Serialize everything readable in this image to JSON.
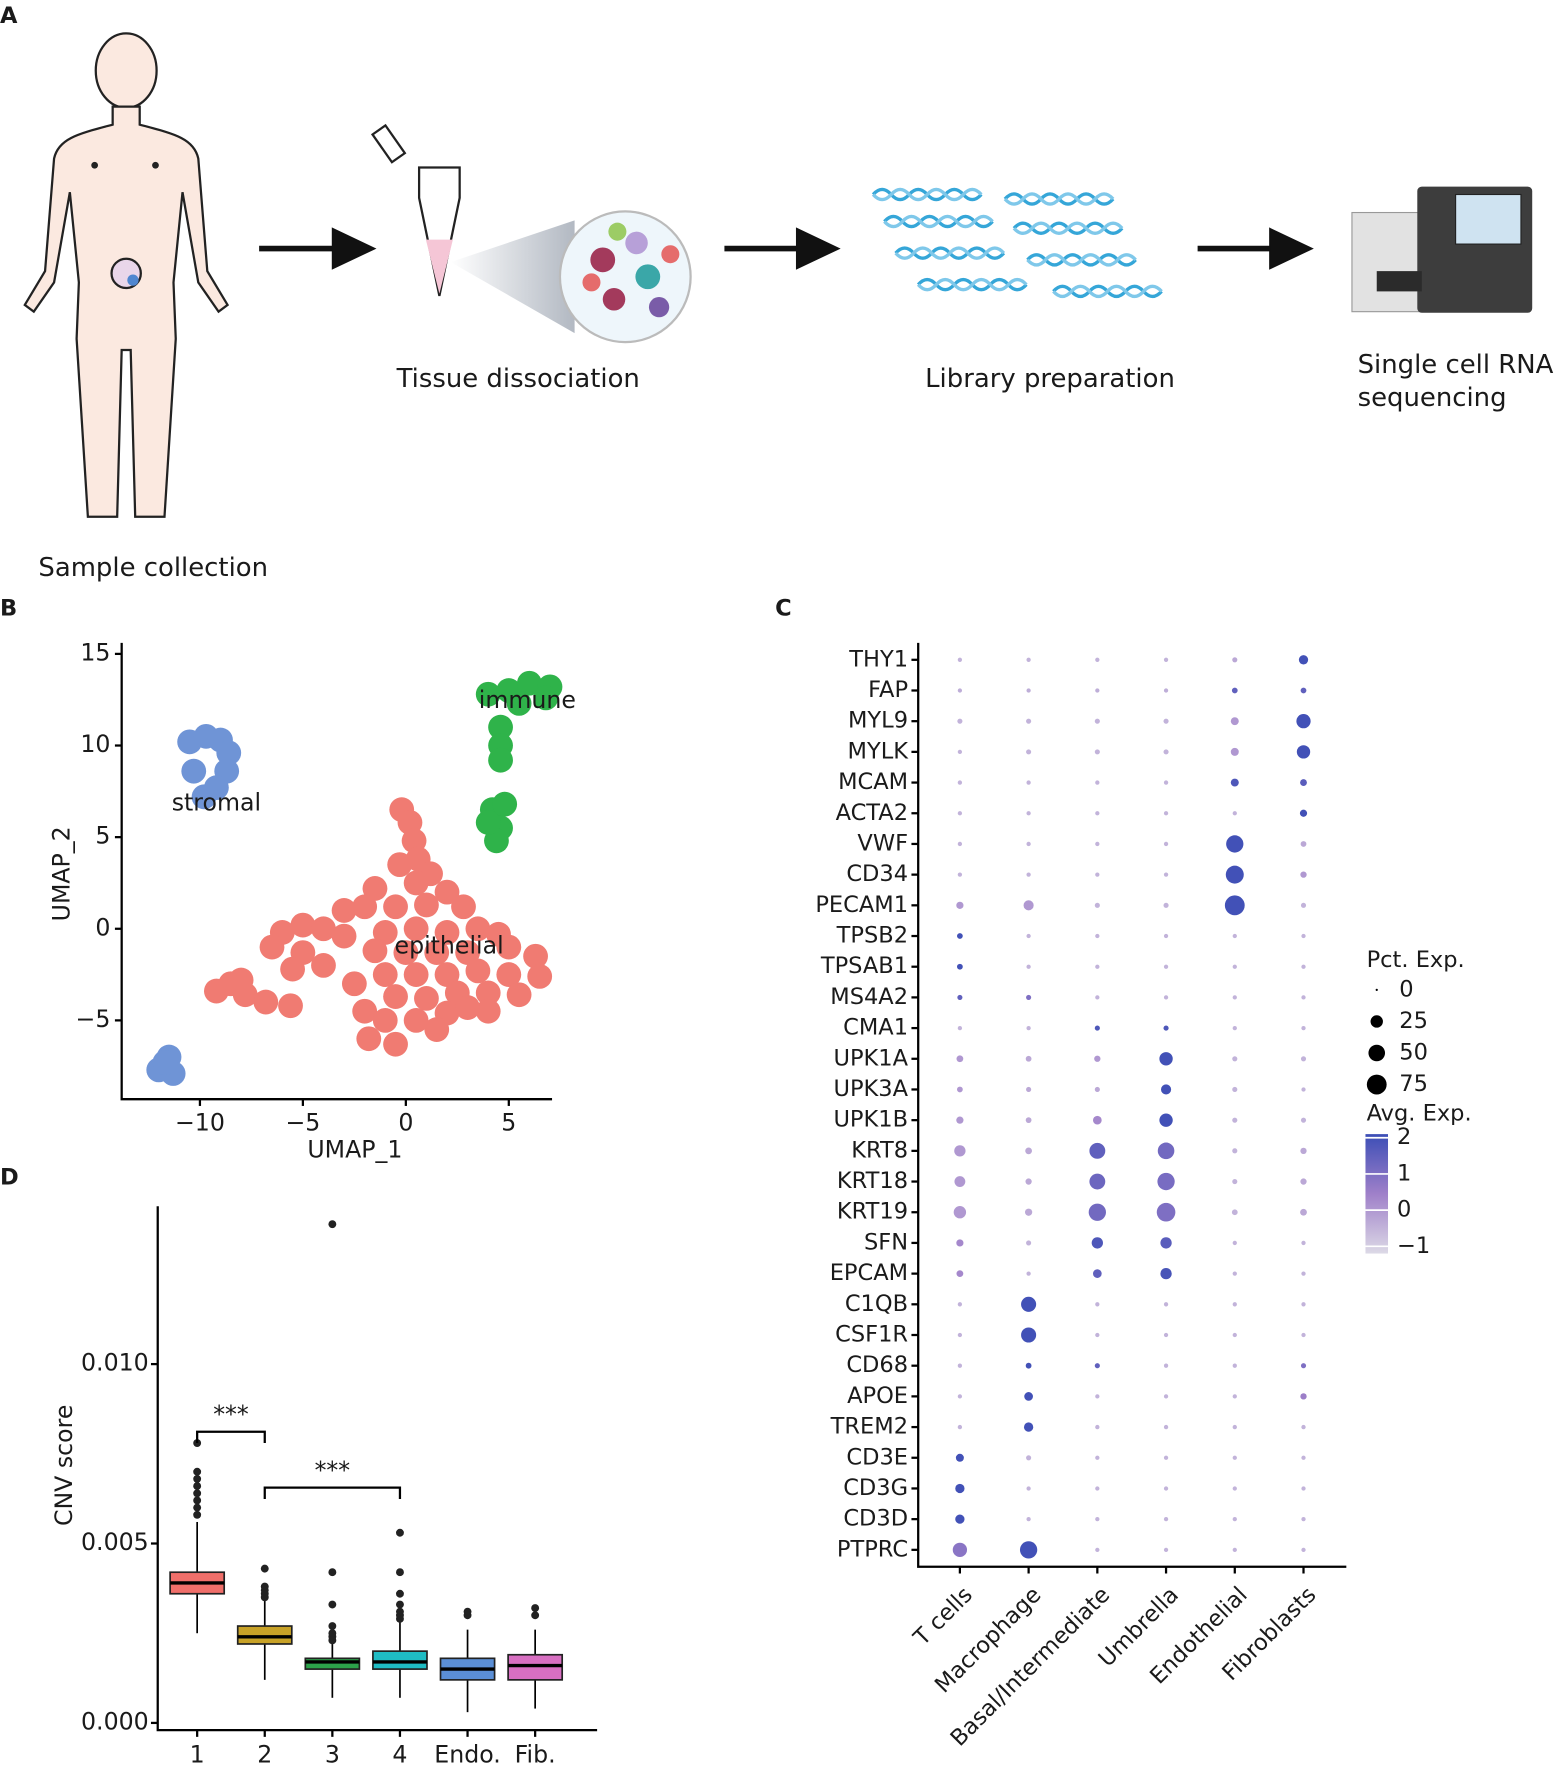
{
  "panels": [
    "A",
    "B",
    "C",
    "D"
  ],
  "workflow": {
    "steps": [
      [
        "Sample collection"
      ],
      [
        "Tissue dissociation"
      ],
      [
        "Library preparation"
      ],
      [
        "Single cell RNA",
        "sequencing"
      ]
    ]
  },
  "chart_data": [
    {
      "type": "scatter",
      "xlabel": "UMAP_1",
      "ylabel": "UMAP_2",
      "xlim": [
        -13.8,
        7.1
      ],
      "ylim": [
        -9.3,
        15.6
      ],
      "xticks": [
        {
          "value": -10,
          "label": "−10"
        },
        {
          "value": -5,
          "label": "−5"
        },
        0,
        5
      ],
      "yticks": [
        {
          "value": -5,
          "label": "−5"
        },
        0,
        5,
        10,
        15
      ],
      "series": [
        {
          "color": "#f07b72",
          "x": [
            -0.2,
            0.2,
            0.4,
            0.6,
            -0.3,
            1.2,
            -1.5,
            0.5,
            2,
            -3,
            -2,
            -0.5,
            1,
            2.8,
            -5,
            -4,
            -6,
            -3,
            -1,
            0.5,
            2,
            3.5,
            4.5,
            -6.5,
            -5,
            -1.5,
            0,
            1.5,
            3,
            5,
            6.3,
            -5.5,
            -4,
            -1,
            0.5,
            2,
            3.5,
            5,
            6.5,
            -2.5,
            -0.5,
            1,
            2.5,
            4,
            5.5,
            -2,
            -1,
            0.5,
            2,
            4,
            -1.8,
            -0.5,
            1.5,
            3,
            -9.2,
            -8.5,
            -7.8,
            -6.8,
            -5.6,
            -8
          ],
          "y": [
            6.5,
            5.8,
            4.8,
            3.8,
            3.5,
            3,
            2.2,
            2.5,
            2,
            1,
            1.2,
            1.2,
            1.3,
            1.2,
            0.2,
            0,
            -0.2,
            -0.4,
            -0.2,
            0,
            -0.2,
            0,
            -0.3,
            -1,
            -1.3,
            -1.2,
            -1.3,
            -1.3,
            -1.3,
            -1,
            -1.5,
            -2.2,
            -2,
            -2.5,
            -2.5,
            -2.5,
            -2.3,
            -2.5,
            -2.6,
            -3,
            -3.7,
            -3.8,
            -3.5,
            -3.5,
            -3.6,
            -4.5,
            -5,
            -5,
            -4.6,
            -4.5,
            -6,
            -6.3,
            -5.5,
            -4.3,
            -3.4,
            -3,
            -3.6,
            -4,
            -4.2,
            -2.8
          ]
        },
        {
          "color": "#6f94d6",
          "x": [
            -10.5,
            -9.7,
            -9,
            -8.6,
            -8.7,
            -9.2,
            -9.8,
            -10.3,
            -11.5,
            -12,
            -11.3,
            -11.7
          ],
          "y": [
            10.2,
            10.5,
            10.3,
            9.6,
            8.6,
            7.7,
            7.2,
            8.6,
            -7,
            -7.7,
            -7.9,
            -7.3
          ]
        },
        {
          "color": "#2fb34a",
          "x": [
            4,
            5,
            6,
            7,
            6.8,
            5.5,
            4.6,
            4.6,
            4.6,
            4.2,
            4.6,
            4.4,
            4,
            4.8
          ],
          "y": [
            12.8,
            13,
            13.4,
            13.2,
            12.6,
            12.3,
            11,
            10,
            9.2,
            6.5,
            5.5,
            4.8,
            5.8,
            6.8
          ]
        }
      ],
      "annotations": [
        {
          "text": "stromal",
          "x": -9.2,
          "y": 6.8
        },
        {
          "text": "immune",
          "x": 5.9,
          "y": 12.4
        },
        {
          "text": "epithelial",
          "x": 2.1,
          "y": -1
        }
      ]
    },
    {
      "type": "dot",
      "x_categories": [
        "T cells",
        "Macrophage",
        "Basal/Intermediate",
        "Umbrella",
        "Endothelial",
        "Fibroblasts"
      ],
      "y_categories": [
        "THY1",
        "FAP",
        "MYL9",
        "MYLK",
        "MCAM",
        "ACTA2",
        "VWF",
        "CD34",
        "PECAM1",
        "TPSB2",
        "TPSAB1",
        "MS4A2",
        "CMA1",
        "UPK1A",
        "UPK3A",
        "UPK1B",
        "KRT8",
        "KRT18",
        "KRT19",
        "SFN",
        "EPCAM",
        "C1QB",
        "CSF1R",
        "CD68",
        "APOE",
        "TREM2",
        "CD3E",
        "CD3G",
        "CD3D",
        "PTPRC"
      ],
      "pct": [
        [
          1,
          1,
          1,
          1,
          2,
          12
        ],
        [
          1,
          1,
          1,
          1,
          3,
          3
        ],
        [
          2,
          2,
          2,
          2,
          8,
          35
        ],
        [
          1,
          2,
          2,
          2,
          8,
          30
        ],
        [
          1,
          1,
          1,
          1,
          8,
          5
        ],
        [
          1,
          1,
          1,
          1,
          1,
          6
        ],
        [
          1,
          1,
          1,
          1,
          55,
          3
        ],
        [
          1,
          1,
          1,
          1,
          60,
          4
        ],
        [
          6,
          15,
          2,
          2,
          75,
          2
        ],
        [
          3,
          1,
          1,
          1,
          1,
          1
        ],
        [
          3,
          1,
          1,
          1,
          1,
          1
        ],
        [
          2,
          2,
          1,
          1,
          1,
          1
        ],
        [
          1,
          1,
          2,
          2,
          1,
          1
        ],
        [
          5,
          3,
          4,
          30,
          2,
          2
        ],
        [
          3,
          2,
          2,
          15,
          2,
          1
        ],
        [
          6,
          3,
          10,
          30,
          2,
          2
        ],
        [
          20,
          5,
          45,
          50,
          2,
          4
        ],
        [
          18,
          4,
          45,
          55,
          2,
          4
        ],
        [
          25,
          6,
          55,
          65,
          3,
          5
        ],
        [
          6,
          2,
          20,
          20,
          1,
          1
        ],
        [
          5,
          1,
          10,
          20,
          1,
          1
        ],
        [
          1,
          40,
          1,
          1,
          1,
          1
        ],
        [
          1,
          40,
          1,
          1,
          1,
          1
        ],
        [
          1,
          3,
          2,
          1,
          1,
          2
        ],
        [
          1,
          10,
          1,
          1,
          1,
          4
        ],
        [
          1,
          12,
          1,
          1,
          1,
          1
        ],
        [
          8,
          2,
          1,
          1,
          1,
          1
        ],
        [
          12,
          1,
          1,
          1,
          1,
          1
        ],
        [
          12,
          1,
          1,
          1,
          1,
          1
        ],
        [
          35,
          55,
          1,
          1,
          1,
          1
        ]
      ],
      "avg": [
        [
          -0.5,
          -0.5,
          -0.5,
          -0.5,
          -0.3,
          2
        ],
        [
          -0.4,
          -0.4,
          -0.4,
          -0.4,
          1.5,
          1.5
        ],
        [
          -0.5,
          -0.5,
          -0.5,
          -0.5,
          0,
          2
        ],
        [
          -0.5,
          -0.5,
          -0.5,
          -0.5,
          0,
          2
        ],
        [
          -0.5,
          -0.5,
          -0.5,
          -0.5,
          1.8,
          1.6
        ],
        [
          -0.5,
          -0.5,
          -0.5,
          -0.5,
          -0.5,
          2
        ],
        [
          -0.5,
          -0.5,
          -0.5,
          -0.5,
          2,
          -0.3
        ],
        [
          -0.5,
          -0.5,
          -0.5,
          -0.5,
          2,
          0
        ],
        [
          0,
          0,
          -0.5,
          -0.5,
          2,
          -0.5
        ],
        [
          2,
          -0.5,
          -0.5,
          -0.5,
          -0.5,
          -0.5
        ],
        [
          2,
          -0.5,
          -0.5,
          -0.5,
          -0.5,
          -0.5
        ],
        [
          1.5,
          1,
          -0.5,
          -0.5,
          -0.5,
          -0.5
        ],
        [
          -0.5,
          -0.5,
          1.8,
          1.8,
          -0.5,
          -0.5
        ],
        [
          0,
          -0.3,
          0,
          2,
          -0.5,
          -0.5
        ],
        [
          0,
          -0.3,
          -0.3,
          2,
          -0.5,
          -0.5
        ],
        [
          0,
          -0.3,
          0.3,
          2,
          -0.5,
          -0.5
        ],
        [
          0,
          -0.3,
          1.5,
          1.2,
          -0.5,
          -0.3
        ],
        [
          0,
          -0.3,
          1.3,
          1.1,
          -0.5,
          -0.3
        ],
        [
          0,
          -0.3,
          1.2,
          1,
          -0.5,
          -0.3
        ],
        [
          0.3,
          -0.5,
          1.8,
          1.6,
          -0.5,
          -0.5
        ],
        [
          0.3,
          -0.5,
          1.5,
          1.9,
          -0.5,
          -0.5
        ],
        [
          -0.5,
          2,
          -0.5,
          -0.5,
          -0.5,
          -0.5
        ],
        [
          -0.5,
          2,
          -0.5,
          -0.5,
          -0.5,
          -0.5
        ],
        [
          -0.5,
          2,
          1.5,
          -0.5,
          -0.5,
          1
        ],
        [
          -0.5,
          2,
          -0.5,
          -0.5,
          -0.5,
          0.5
        ],
        [
          -0.5,
          2,
          -0.5,
          -0.5,
          -0.5,
          -0.5
        ],
        [
          2,
          -0.5,
          -0.5,
          -0.5,
          -0.5,
          -0.5
        ],
        [
          2,
          -0.5,
          -0.5,
          -0.5,
          -0.5,
          -0.5
        ],
        [
          2,
          -0.5,
          -0.5,
          -0.5,
          -0.5,
          -0.5
        ],
        [
          0.8,
          2,
          -0.5,
          -0.5,
          -0.5,
          -0.5
        ]
      ],
      "size_legend": {
        "title": "Pct. Exp.",
        "values": [
          0,
          25,
          50,
          75
        ]
      },
      "color_legend": {
        "title": "Avg. Exp.",
        "clim": [
          -1.2,
          2.1
        ],
        "colors": [
          "#dcd9e6",
          "#9f80c9",
          "#3c4eb6"
        ],
        "ticks": [
          {
            "value": -1,
            "label": "−1"
          },
          0,
          1,
          2
        ]
      }
    },
    {
      "type": "box",
      "ylabel": "CNV score",
      "categories": [
        "1",
        "2",
        "3",
        "4",
        "Endo.",
        "Fib."
      ],
      "ylim": [
        -0.0002,
        0.0144
      ],
      "yticks": [
        {
          "value": 0,
          "label": "0.000"
        },
        {
          "value": 0.005,
          "label": "0.005"
        },
        {
          "value": 0.01,
          "label": "0.010"
        }
      ],
      "boxes": [
        {
          "color": "#f06f6a",
          "whisker_low": 0.0025,
          "q1": 0.0036,
          "median": 0.0039,
          "q3": 0.0042,
          "whisker_high": 0.0056,
          "outliers": [
            0.0058,
            0.006,
            0.0062,
            0.0064,
            0.0066,
            0.0068,
            0.007,
            0.0078
          ]
        },
        {
          "color": "#c8a227",
          "whisker_low": 0.0012,
          "q1": 0.0022,
          "median": 0.0024,
          "q3": 0.0027,
          "whisker_high": 0.0034,
          "outliers": [
            0.0035,
            0.0036,
            0.0037,
            0.0038,
            0.0043
          ]
        },
        {
          "color": "#2ca24a",
          "whisker_low": 0.0007,
          "q1": 0.0015,
          "median": 0.0017,
          "q3": 0.0018,
          "whisker_high": 0.0022,
          "outliers": [
            0.0023,
            0.0024,
            0.0025,
            0.0027,
            0.0033,
            0.0042,
            0.0139
          ]
        },
        {
          "color": "#1fbcc4",
          "whisker_low": 0.0007,
          "q1": 0.0015,
          "median": 0.0017,
          "q3": 0.002,
          "whisker_high": 0.0028,
          "outliers": [
            0.0029,
            0.003,
            0.0031,
            0.0033,
            0.0036,
            0.0042,
            0.0053
          ]
        },
        {
          "color": "#5b8fd6",
          "whisker_low": 0.0003,
          "q1": 0.0012,
          "median": 0.0015,
          "q3": 0.0018,
          "whisker_high": 0.0026,
          "outliers": [
            0.003,
            0.0031
          ]
        },
        {
          "color": "#d86fc2",
          "whisker_low": 0.0004,
          "q1": 0.0012,
          "median": 0.0016,
          "q3": 0.0019,
          "whisker_high": 0.0026,
          "outliers": [
            0.003,
            0.0032
          ]
        }
      ],
      "significance": [
        {
          "groups": [
            0,
            1
          ],
          "label": "***"
        },
        {
          "groups": [
            1,
            3
          ],
          "label": "***"
        }
      ]
    }
  ]
}
